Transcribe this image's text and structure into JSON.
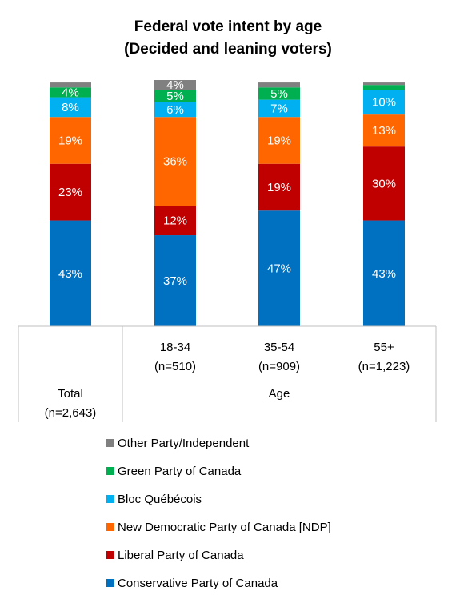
{
  "chart_data": {
    "type": "bar",
    "stacked": true,
    "title": "Federal vote intent by age",
    "subtitle": "(Decided and leaning voters)",
    "categories": [
      {
        "line1": "Total",
        "line2": "(n=2,643)"
      },
      {
        "line1": "18-34",
        "line2": "(n=510)"
      },
      {
        "line1": "35-54",
        "line2": "(n=909)"
      },
      {
        "line1": "55+",
        "line2": "(n=1,223)"
      }
    ],
    "group_label": "Age",
    "ylim": [
      0,
      100
    ],
    "series": [
      {
        "name": "Conservative Party of Canada",
        "color": "#0070C0",
        "values": [
          43,
          37,
          47,
          43
        ],
        "labels": [
          "43%",
          "37%",
          "47%",
          "43%"
        ]
      },
      {
        "name": "Liberal Party of Canada",
        "color": "#C00000",
        "values": [
          23,
          12,
          19,
          30
        ],
        "labels": [
          "23%",
          "12%",
          "19%",
          "30%"
        ]
      },
      {
        "name": "New Democratic Party of Canada [NDP]",
        "color": "#FF6600",
        "values": [
          19,
          36,
          19,
          13
        ],
        "labels": [
          "19%",
          "36%",
          "19%",
          "13%"
        ]
      },
      {
        "name": "Bloc Québécois",
        "color": "#00B0F0",
        "values": [
          8,
          6,
          7,
          10
        ],
        "labels": [
          "8%",
          "6%",
          "7%",
          "10%"
        ]
      },
      {
        "name": "Green Party of Canada",
        "color": "#00B050",
        "values": [
          4,
          5,
          5,
          2
        ],
        "labels": [
          "4%",
          "5%",
          "5%",
          ""
        ]
      },
      {
        "name": "Other Party/Independent",
        "color": "#808080",
        "values": [
          2,
          4,
          2,
          1
        ],
        "labels": [
          "",
          "4%",
          "",
          ""
        ]
      }
    ],
    "legend_position": "bottom",
    "grid": false
  }
}
